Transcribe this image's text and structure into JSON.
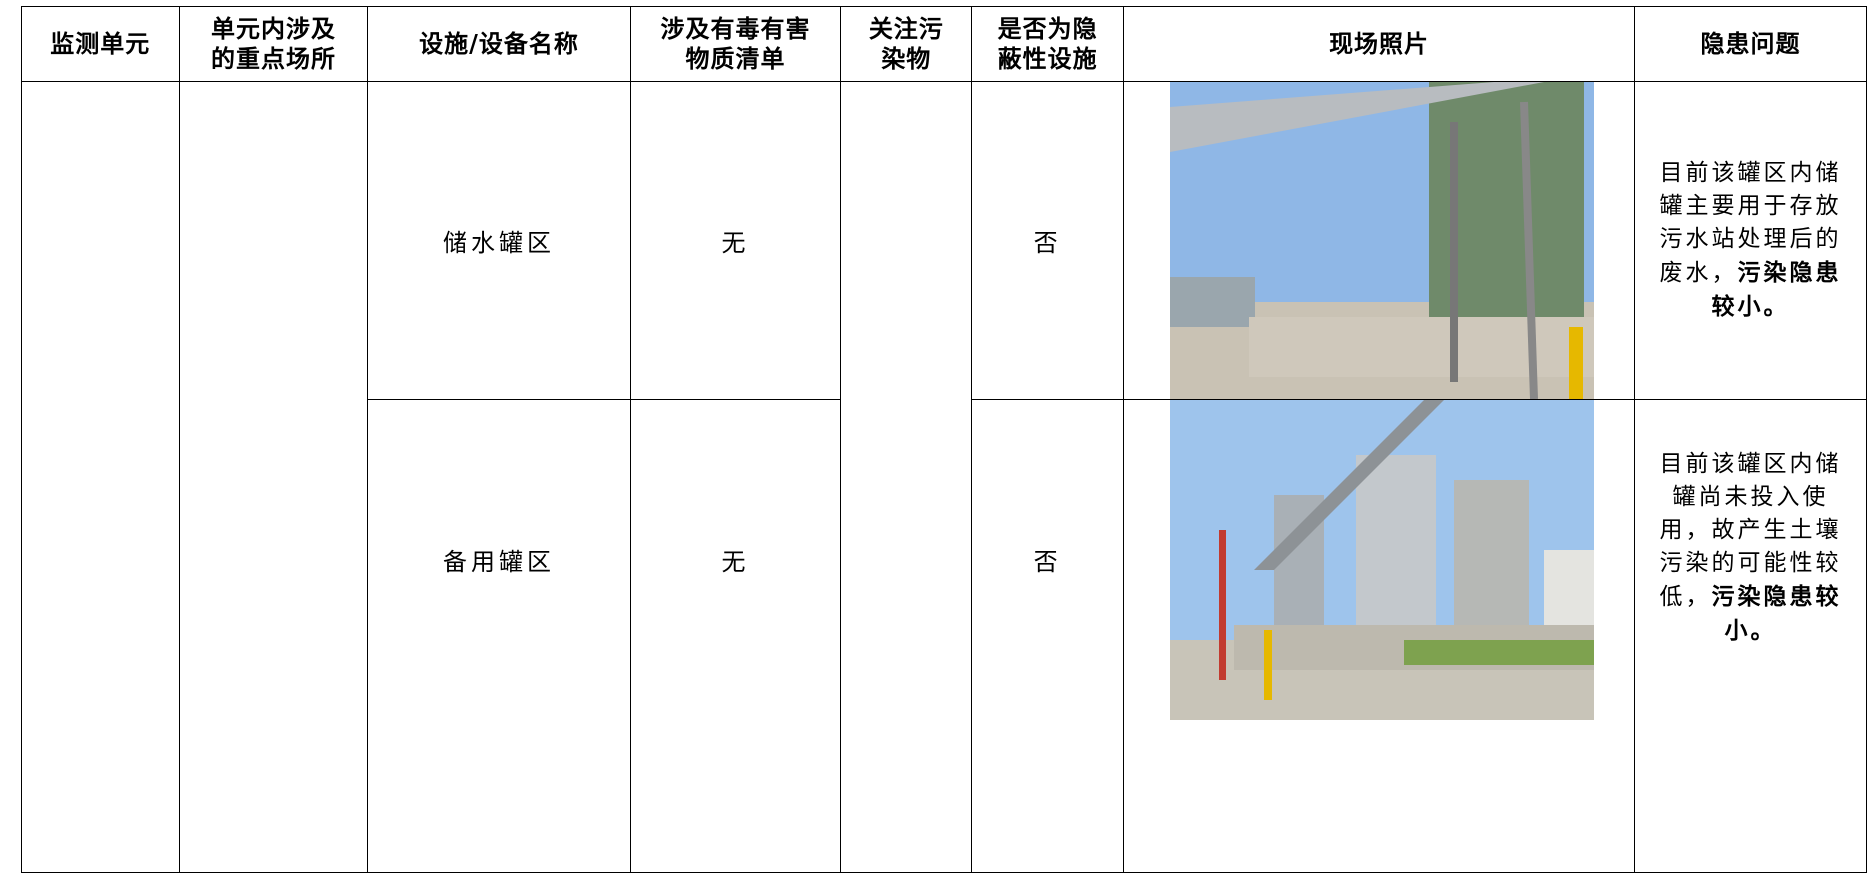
{
  "table": {
    "header": [
      "监测单元",
      "单元内涉及的重点场所",
      "设施/设备名称",
      "涉及有毒有害物质清单",
      "关注污染物",
      "是否为隐蔽性设施",
      "现场照片",
      "隐患问题"
    ],
    "rows": [
      {
        "facility": "储水罐区",
        "substances": "无",
        "hidden": "否",
        "issue": {
          "text": "目前该罐区内储罐主要用于存放污水站处理后的废水，",
          "emphasis": "污染隐患较小。"
        }
      },
      {
        "facility": "备用罐区",
        "substances": "无",
        "hidden": "否",
        "issue": {
          "text": "目前该罐区内储罐尚未投入使用，故产生土壤污染的可能性较低，",
          "emphasis": "污染隐患较小。"
        }
      }
    ]
  }
}
